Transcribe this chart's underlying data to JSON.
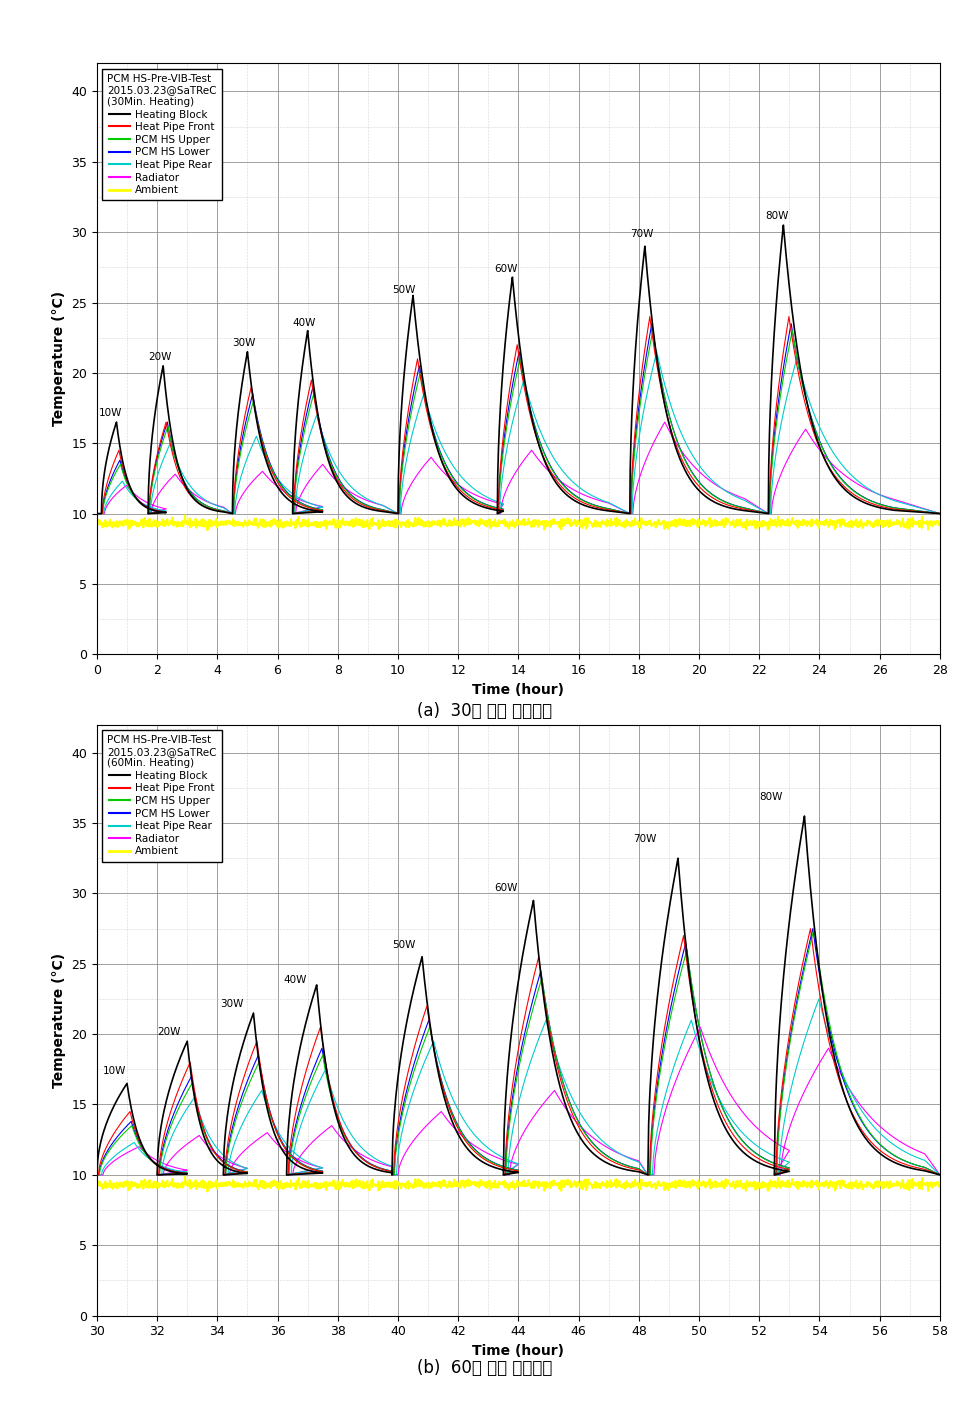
{
  "chart1": {
    "title_lines": [
      "PCM HS-Pre-VIB-Test",
      "2015.03.23@SaTReC",
      "(30Min. Heating)"
    ],
    "xlabel": "Time (hour)",
    "ylabel": "Temperature (°C)",
    "xlim": [
      0,
      28
    ],
    "ylim": [
      0,
      42
    ],
    "yticks": [
      0,
      5,
      10,
      15,
      20,
      25,
      30,
      35,
      40
    ],
    "xticks": [
      0,
      2,
      4,
      6,
      8,
      10,
      12,
      14,
      16,
      18,
      20,
      22,
      24,
      26,
      28
    ],
    "caption": "(a)  30분 가열 프로파일",
    "cycles": [
      {
        "label": "10W",
        "t_peak": 0.65,
        "t_end": 2.3,
        "lbl_x": 0.05,
        "lbl_y": 16.8,
        "peaks": [
          16.5,
          14.5,
          13.5,
          13.8,
          12.3,
          12.0
        ]
      },
      {
        "label": "20W",
        "t_peak": 2.2,
        "t_end": 4.2,
        "lbl_x": 1.7,
        "lbl_y": 20.8,
        "peaks": [
          20.5,
          16.5,
          16.2,
          16.5,
          15.0,
          12.8
        ]
      },
      {
        "label": "30W",
        "t_peak": 5.0,
        "t_end": 7.5,
        "lbl_x": 4.5,
        "lbl_y": 21.8,
        "peaks": [
          21.5,
          19.0,
          18.0,
          18.5,
          15.5,
          13.0
        ]
      },
      {
        "label": "40W",
        "t_peak": 7.0,
        "t_end": 9.5,
        "lbl_x": 6.5,
        "lbl_y": 23.2,
        "peaks": [
          23.0,
          19.5,
          18.5,
          19.0,
          17.0,
          13.5
        ]
      },
      {
        "label": "50W",
        "t_peak": 10.5,
        "t_end": 13.5,
        "lbl_x": 9.8,
        "lbl_y": 25.5,
        "peaks": [
          25.5,
          21.0,
          20.0,
          20.5,
          18.5,
          14.0
        ]
      },
      {
        "label": "60W",
        "t_peak": 13.8,
        "t_end": 17.0,
        "lbl_x": 13.2,
        "lbl_y": 27.0,
        "peaks": [
          26.8,
          22.0,
          21.0,
          21.5,
          19.5,
          14.5
        ]
      },
      {
        "label": "70W",
        "t_peak": 18.2,
        "t_end": 21.5,
        "lbl_x": 17.7,
        "lbl_y": 29.5,
        "peaks": [
          29.0,
          24.0,
          23.0,
          23.5,
          21.5,
          16.5
        ]
      },
      {
        "label": "80W",
        "t_peak": 22.8,
        "t_end": 26.5,
        "lbl_x": 22.2,
        "lbl_y": 30.8,
        "peaks": [
          30.5,
          24.0,
          23.0,
          23.5,
          21.0,
          16.0
        ]
      }
    ],
    "heat_dur": 0.5,
    "ambient_y": 9.3
  },
  "chart2": {
    "title_lines": [
      "PCM HS-Pre-VIB-Test",
      "2015.03.23@SaTReC",
      "(60Min. Heating)"
    ],
    "xlabel": "Time (hour)",
    "ylabel": "Temperature (°C)",
    "xlim": [
      30,
      58
    ],
    "ylim": [
      0,
      42
    ],
    "yticks": [
      0,
      5,
      10,
      15,
      20,
      25,
      30,
      35,
      40
    ],
    "xticks": [
      30,
      32,
      34,
      36,
      38,
      40,
      42,
      44,
      46,
      48,
      50,
      52,
      54,
      56,
      58
    ],
    "caption": "(b)  60분 가열 프로파일",
    "cycles": [
      {
        "label": "10W",
        "t_peak": 31.0,
        "t_end": 33.0,
        "lbl_x": 30.2,
        "lbl_y": 17.0,
        "peaks": [
          16.5,
          14.5,
          13.5,
          13.8,
          12.3,
          12.0
        ]
      },
      {
        "label": "20W",
        "t_peak": 33.0,
        "t_end": 35.0,
        "lbl_x": 32.0,
        "lbl_y": 19.8,
        "peaks": [
          19.5,
          18.0,
          16.5,
          17.0,
          15.5,
          12.8
        ]
      },
      {
        "label": "30W",
        "t_peak": 35.2,
        "t_end": 37.5,
        "lbl_x": 34.1,
        "lbl_y": 21.8,
        "peaks": [
          21.5,
          19.5,
          18.0,
          18.5,
          16.0,
          13.0
        ]
      },
      {
        "label": "40W",
        "t_peak": 37.3,
        "t_end": 39.8,
        "lbl_x": 36.2,
        "lbl_y": 23.5,
        "peaks": [
          23.5,
          20.5,
          18.5,
          19.0,
          17.5,
          13.5
        ]
      },
      {
        "label": "50W",
        "t_peak": 40.8,
        "t_end": 44.0,
        "lbl_x": 39.8,
        "lbl_y": 26.0,
        "peaks": [
          25.5,
          22.0,
          20.5,
          21.0,
          19.5,
          14.5
        ]
      },
      {
        "label": "60W",
        "t_peak": 44.5,
        "t_end": 48.0,
        "lbl_x": 43.2,
        "lbl_y": 30.0,
        "peaks": [
          29.5,
          25.5,
          24.0,
          24.5,
          21.0,
          16.0
        ]
      },
      {
        "label": "70W",
        "t_peak": 49.3,
        "t_end": 53.0,
        "lbl_x": 47.8,
        "lbl_y": 33.5,
        "peaks": [
          32.5,
          27.0,
          26.0,
          26.5,
          21.0,
          20.5
        ]
      },
      {
        "label": "80W",
        "t_peak": 53.5,
        "t_end": 57.5,
        "lbl_x": 52.0,
        "lbl_y": 36.5,
        "peaks": [
          35.5,
          27.5,
          27.5,
          27.5,
          22.5,
          19.0
        ]
      }
    ],
    "heat_dur": 1.0,
    "ambient_y": 9.3
  },
  "colors": {
    "Heating Block": "#000000",
    "Heat Pipe Front": "#ff0000",
    "PCM HS Upper": "#00cc00",
    "PCM HS Lower": "#0000ff",
    "Heat Pipe Rear": "#00cccc",
    "Radiator": "#ff00ff",
    "Ambient": "#ffff00"
  },
  "legend_labels": [
    "Heating Block",
    "Heat Pipe Front",
    "PCM HS Upper",
    "PCM HS Lower",
    "Heat Pipe Rear",
    "Radiator",
    "Ambient"
  ]
}
